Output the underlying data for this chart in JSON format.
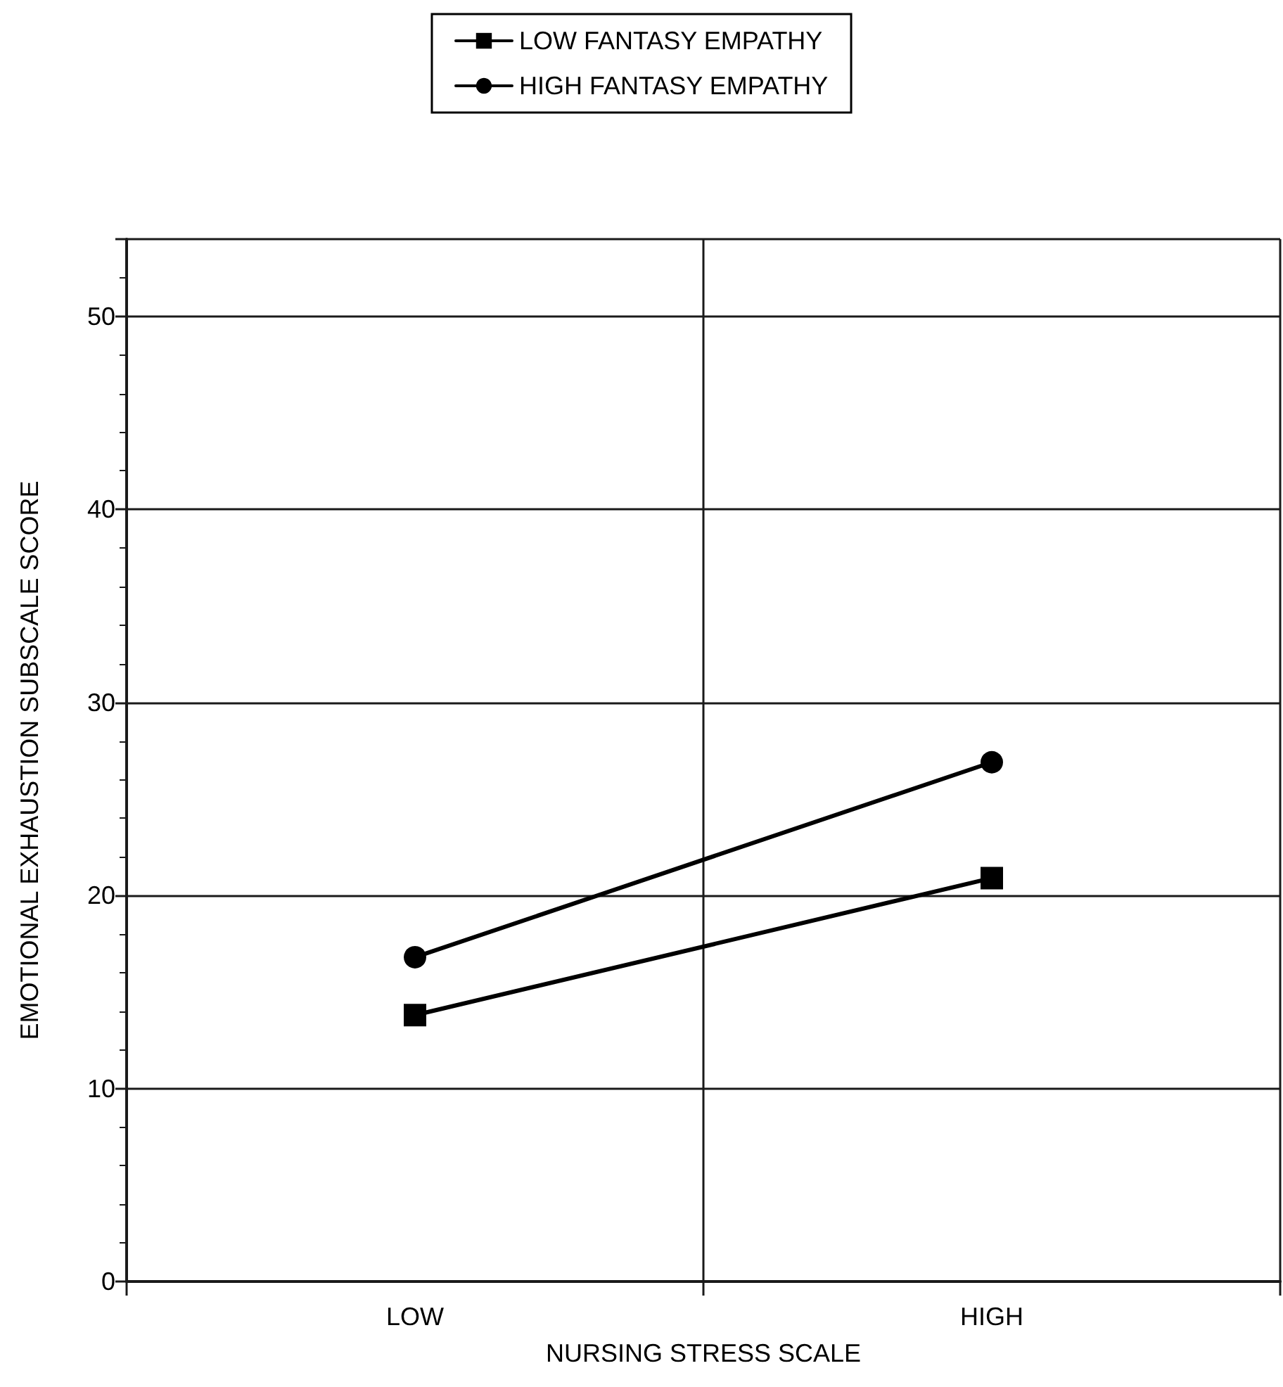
{
  "chart_data": {
    "type": "line",
    "xlabel": "NURSING STRESS SCALE",
    "ylabel": "EMOTIONAL EXHAUSTION SUBSCALE SCORE",
    "categories": [
      "LOW",
      "HIGH"
    ],
    "series": [
      {
        "name": "LOW FANTASY EMPATHY",
        "color": "#000000",
        "marker": "square",
        "values": [
          13.8,
          20.9
        ]
      },
      {
        "name": "HIGH FANTASY EMPATHY",
        "color": "#000000",
        "marker": "circle",
        "values": [
          16.8,
          26.9
        ]
      }
    ],
    "ylim": [
      0,
      54
    ],
    "yticks": [
      0,
      10,
      20,
      30,
      40,
      50
    ],
    "grid": true,
    "legend": "top",
    "line_style": "solid"
  }
}
